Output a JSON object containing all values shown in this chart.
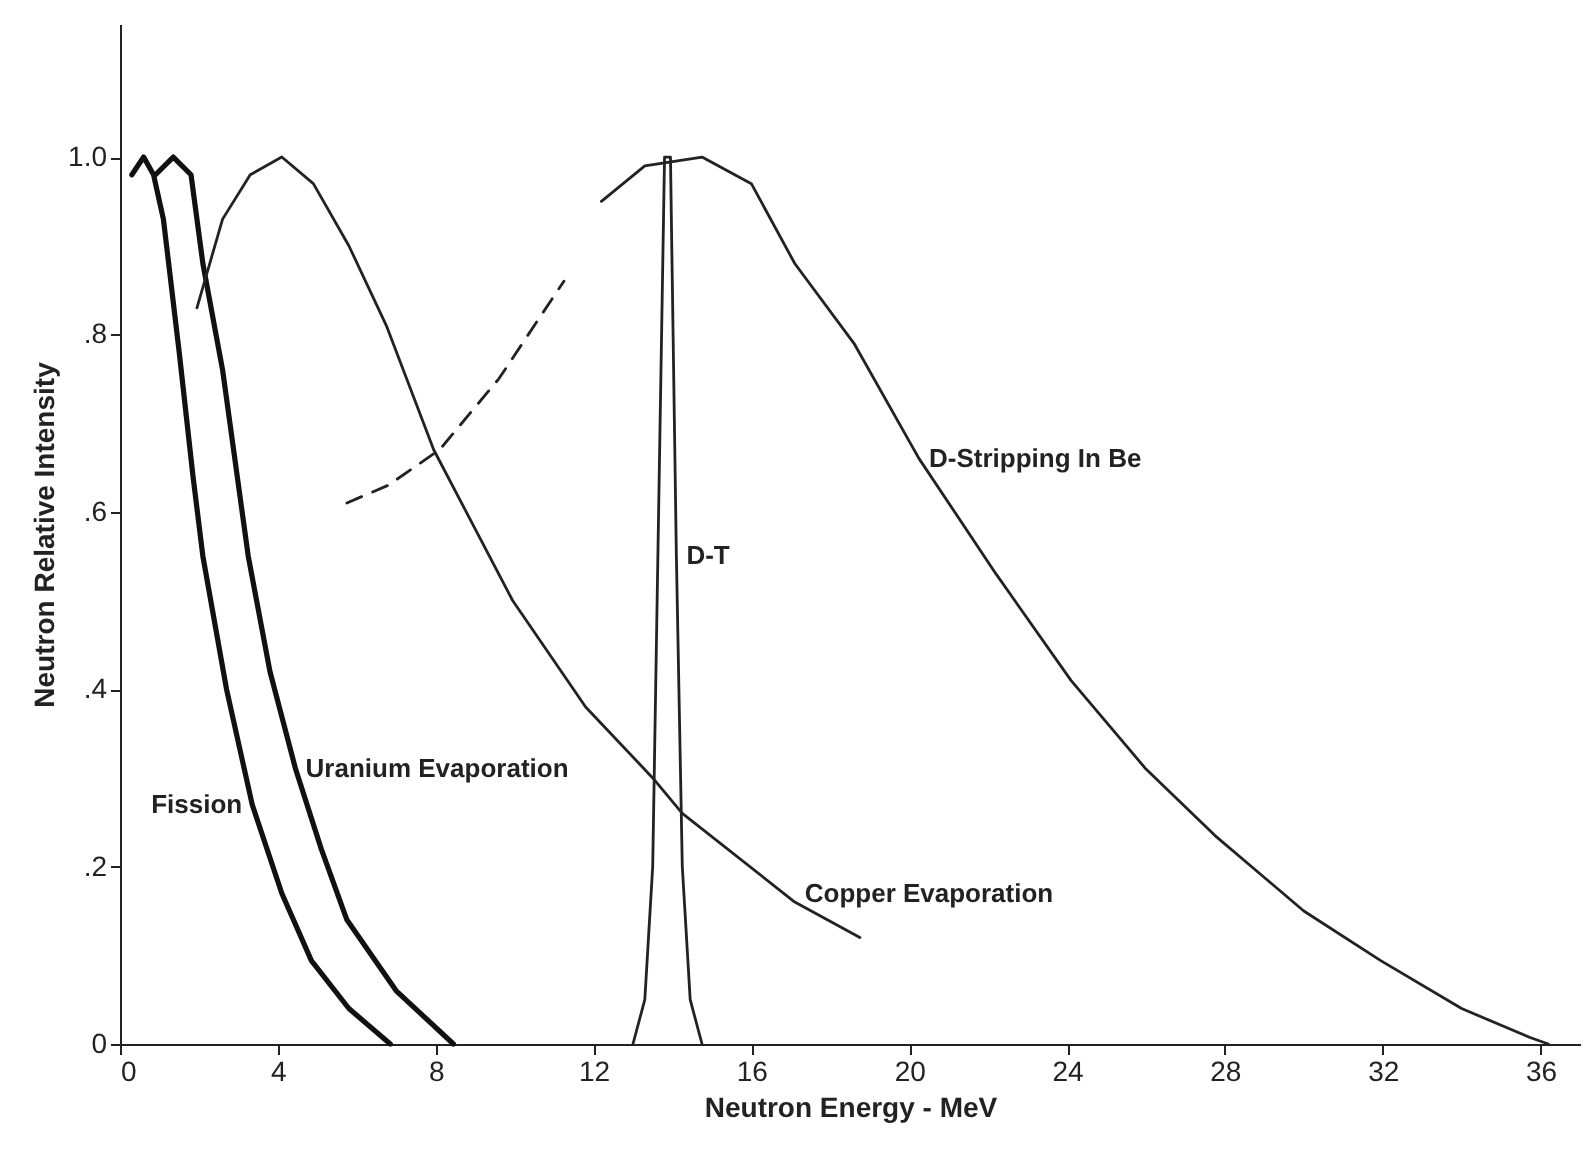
{
  "chart_data": {
    "type": "line",
    "xlabel": "Neutron Energy - MeV",
    "ylabel": "Neutron Relative Intensity",
    "xlim": [
      0,
      37
    ],
    "ylim": [
      0,
      1.15
    ],
    "xticks": [
      0,
      4,
      8,
      12,
      16,
      20,
      24,
      28,
      32,
      36
    ],
    "yticks": [
      0,
      {
        "value": 0.2,
        "label": ".2"
      },
      {
        "value": 0.4,
        "label": ".4"
      },
      {
        "value": 0.6,
        "label": ".6"
      },
      {
        "value": 0.8,
        "label": ".8"
      },
      {
        "value": 1,
        "label": "1.0"
      }
    ],
    "grid": false,
    "legend": false,
    "marker": "none",
    "series": [
      {
        "name": "Fission",
        "color": "#111111",
        "x": [
          0.3,
          0.6,
          0.85,
          1.1,
          1.5,
          1.85,
          2.1,
          2.7,
          3.35,
          4.1,
          4.85,
          5.8,
          6.85
        ],
        "values": [
          0.98,
          1.0,
          0.98,
          0.93,
          0.78,
          0.64,
          0.55,
          0.4,
          0.27,
          0.17,
          0.094,
          0.04,
          0
        ]
      },
      {
        "name": "Uranium Evaporation",
        "color": "#111111",
        "x": [
          0.9,
          1.35,
          1.8,
          2.1,
          2.6,
          3.25,
          3.8,
          4.45,
          5.1,
          5.75,
          7.0,
          8.45
        ],
        "values": [
          0.98,
          1.0,
          0.98,
          0.88,
          0.76,
          0.55,
          0.42,
          0.31,
          0.22,
          0.14,
          0.06,
          0
        ]
      },
      {
        "name": "Copper Evaporation",
        "color": "#222222",
        "x": [
          1.95,
          2.6,
          3.3,
          4.1,
          4.9,
          5.8,
          6.75,
          7.95,
          9.95,
          11.8,
          13.5,
          14.25,
          17.1,
          18.75
        ],
        "values": [
          0.83,
          0.93,
          0.98,
          1.0,
          0.97,
          0.9,
          0.81,
          0.67,
          0.5,
          0.38,
          0.3,
          0.26,
          0.16,
          0.12
        ]
      },
      {
        "color": "#222222",
        "line_style": "dashed",
        "x": [
          5.75,
          6.8,
          8.1,
          9.6,
          11.25
        ],
        "values": [
          0.61,
          0.63,
          0.67,
          0.75,
          0.86
        ]
      },
      {
        "name": "D-Stripping In Be",
        "color": "#222222",
        "x": [
          12.2,
          13.3,
          14.75,
          16.0,
          17.1,
          18.6,
          20.25,
          22.2,
          24.1,
          26.0,
          27.75,
          30.0,
          31.95,
          34.0,
          35.75,
          36.2
        ],
        "values": [
          0.95,
          0.99,
          1.0,
          0.97,
          0.88,
          0.79,
          0.66,
          0.53,
          0.41,
          0.31,
          0.235,
          0.15,
          0.094,
          0.04,
          0.007,
          0
        ]
      },
      {
        "name": "D-T",
        "color": "#222222",
        "x": [
          13.0,
          13.3,
          13.5,
          13.65,
          13.8,
          13.95,
          14.1,
          14.25,
          14.45,
          14.75
        ],
        "values": [
          0,
          0.05,
          0.2,
          0.6,
          1.0,
          1.0,
          0.55,
          0.2,
          0.05,
          0
        ]
      }
    ]
  }
}
